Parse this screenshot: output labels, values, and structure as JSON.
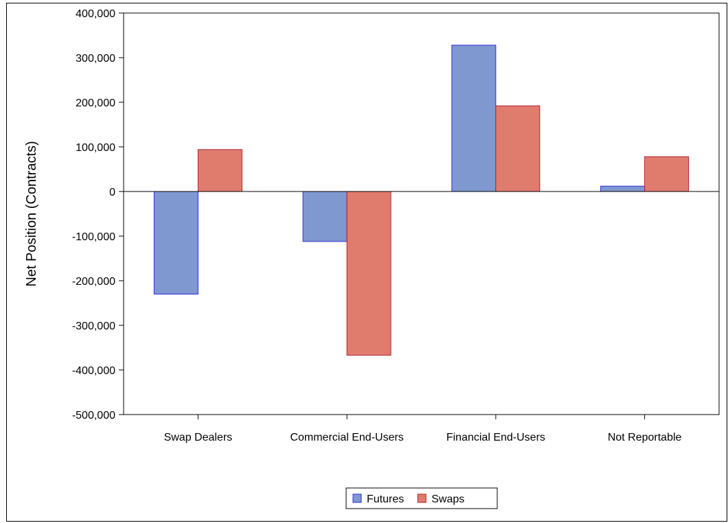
{
  "chart_data": {
    "type": "bar",
    "title": "",
    "xlabel": "",
    "ylabel": "Net Position (Contracts)",
    "categories": [
      "Swap Dealers",
      "Commercial End-Users",
      "Financial End-Users",
      "Not Reportable"
    ],
    "series": [
      {
        "name": "Futures",
        "values": [
          -230000,
          -112000,
          328000,
          12000
        ],
        "fill": "#7f98cf",
        "stroke": "#2b2bd6"
      },
      {
        "name": "Swaps",
        "values": [
          94000,
          -367000,
          192000,
          78000
        ],
        "fill": "#e07c6e",
        "stroke": "#b0202a"
      }
    ],
    "ylim": [
      -500000,
      400000
    ],
    "yticks": [
      400000,
      300000,
      200000,
      100000,
      0,
      -100000,
      -200000,
      -300000,
      -400000,
      -500000
    ],
    "ytick_labels": [
      "400,000",
      "300,000",
      "200,000",
      "100,000",
      "0",
      "-100,000",
      "-200,000",
      "-300,000",
      "-400,000",
      "-500,000"
    ],
    "grid": false,
    "legend": "bottom-center",
    "zero_line": true
  }
}
